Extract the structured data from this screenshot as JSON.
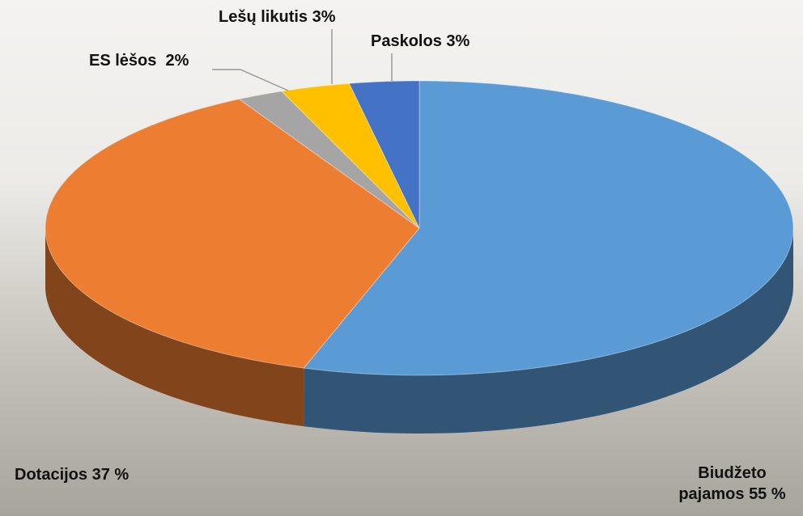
{
  "chart_data": {
    "type": "pie3d",
    "categories": [
      "Biudžeto pajamos",
      "Dotacijos",
      "ES lėšos",
      "Lešų likutis",
      "Paskolos"
    ],
    "values": [
      55,
      37,
      2,
      3,
      3
    ],
    "value_labels": [
      "55 %",
      "37 %",
      " 2%",
      "3%",
      "3%"
    ],
    "colors": [
      "#5b9bd5",
      "#ed7d31",
      "#a5a5a5",
      "#ffc000",
      "#4472c4"
    ]
  }
}
